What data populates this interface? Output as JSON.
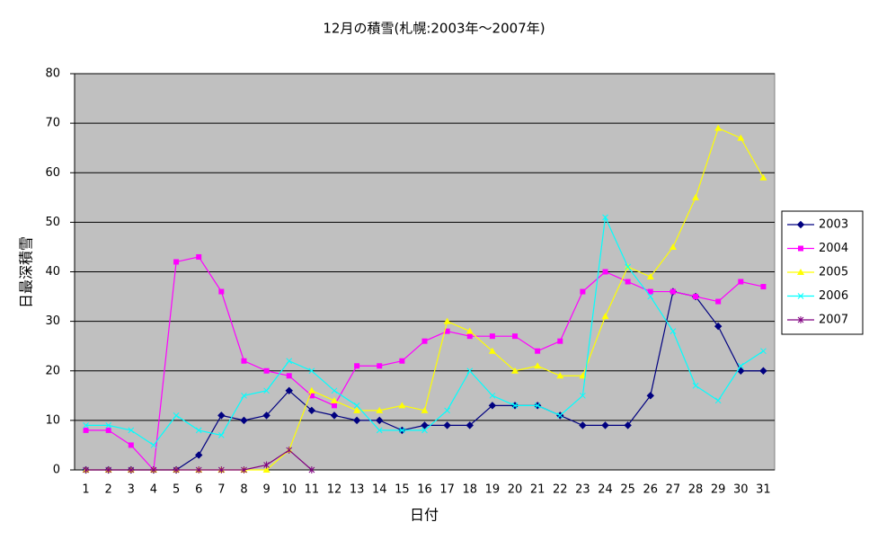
{
  "chart_data": {
    "type": "line",
    "title": "12月の積雪(札幌:2003年～2007年)",
    "x_label": "日付",
    "y_label": "日最深積雪",
    "categories": [
      1,
      2,
      3,
      4,
      5,
      6,
      7,
      8,
      9,
      10,
      11,
      12,
      13,
      14,
      15,
      16,
      17,
      18,
      19,
      20,
      21,
      22,
      23,
      24,
      25,
      26,
      27,
      28,
      29,
      30,
      31
    ],
    "ylim": [
      0,
      80
    ],
    "yticks": [
      0,
      10,
      20,
      30,
      40,
      50,
      60,
      70,
      80
    ],
    "grid": true,
    "legend": "right",
    "series": [
      {
        "name": "2003",
        "color": "#000080",
        "marker": "diamond",
        "values": [
          0,
          0,
          0,
          0,
          0,
          3,
          11,
          10,
          11,
          16,
          12,
          11,
          10,
          10,
          8,
          9,
          9,
          9,
          13,
          13,
          13,
          11,
          9,
          9,
          9,
          15,
          36,
          35,
          29,
          20,
          20
        ]
      },
      {
        "name": "2004",
        "color": "#ff00ff",
        "marker": "square",
        "values": [
          8,
          8,
          5,
          0,
          42,
          43,
          36,
          22,
          20,
          19,
          15,
          13,
          21,
          21,
          22,
          26,
          28,
          27,
          27,
          27,
          24,
          26,
          36,
          40,
          38,
          36,
          36,
          35,
          34,
          38,
          37
        ]
      },
      {
        "name": "2005",
        "color": "#ffff00",
        "marker": "triangle",
        "values": [
          0,
          0,
          0,
          0,
          0,
          0,
          0,
          0,
          0,
          4,
          16,
          14,
          12,
          12,
          13,
          12,
          30,
          28,
          24,
          20,
          21,
          19,
          19,
          31,
          41,
          39,
          45,
          55,
          69,
          67,
          59
        ]
      },
      {
        "name": "2006",
        "color": "#00ffff",
        "marker": "x",
        "values": [
          9,
          9,
          8,
          5,
          11,
          8,
          7,
          15,
          16,
          22,
          20,
          16,
          13,
          8,
          8,
          8,
          12,
          20,
          15,
          13,
          13,
          11,
          15,
          51,
          41,
          35,
          28,
          17,
          14,
          21,
          24
        ]
      },
      {
        "name": "2007",
        "color": "#800080",
        "marker": "star",
        "values": [
          0,
          0,
          0,
          0,
          0,
          0,
          0,
          0,
          1,
          4,
          0,
          null,
          null,
          null,
          null,
          null,
          null,
          null,
          null,
          null,
          null,
          null,
          null,
          null,
          null,
          null,
          null,
          null,
          null,
          null,
          null
        ]
      }
    ]
  }
}
